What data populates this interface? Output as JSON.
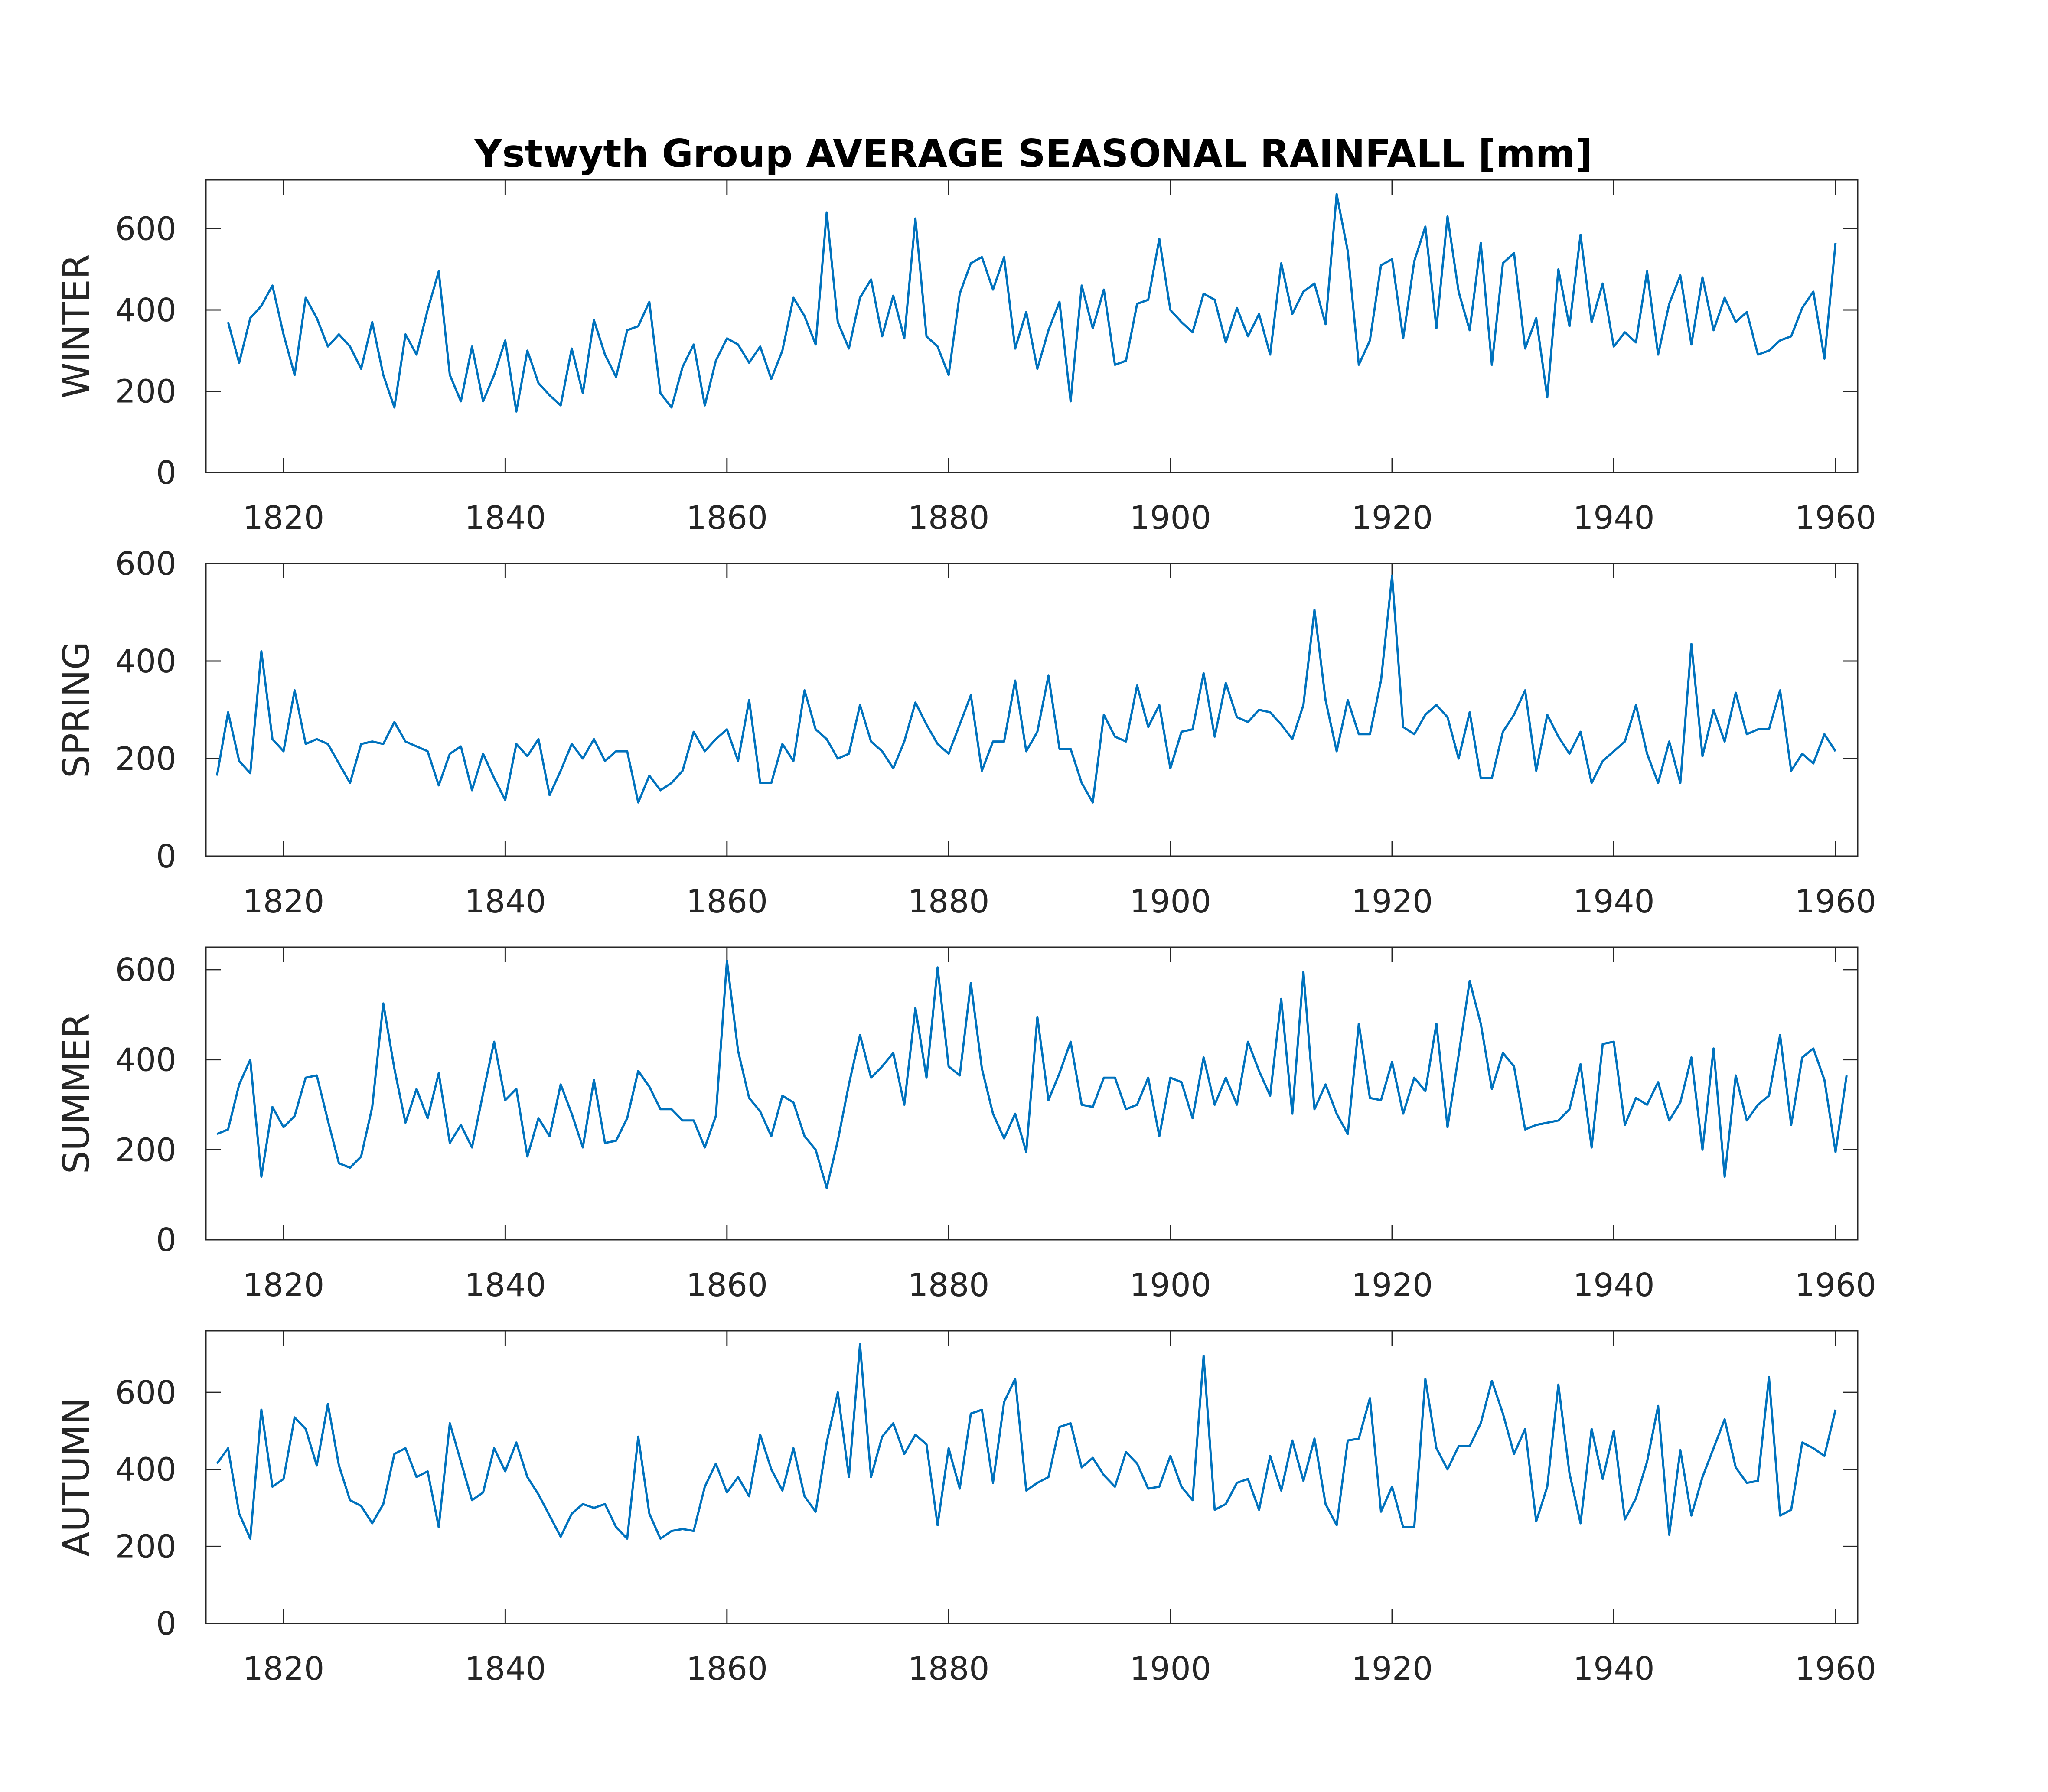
{
  "title": "Ystwyth Group AVERAGE SEASONAL RAINFALL [mm]",
  "colors": {
    "line": "#0072BD",
    "axis": "#262626",
    "background": "#ffffff"
  },
  "chart_data": [
    {
      "type": "line",
      "ylabel": "WINTER",
      "xlabel": "",
      "xlim": [
        1813,
        1962
      ],
      "ylim": [
        0,
        720
      ],
      "xticks": [
        1820,
        1840,
        1860,
        1880,
        1900,
        1920,
        1940,
        1960
      ],
      "yticks": [
        0,
        200,
        400,
        600
      ],
      "x_start": 1815,
      "values": [
        370,
        270,
        380,
        410,
        460,
        340,
        240,
        430,
        380,
        310,
        340,
        310,
        255,
        370,
        240,
        160,
        340,
        290,
        400,
        495,
        240,
        175,
        310,
        175,
        240,
        325,
        150,
        300,
        220,
        190,
        165,
        305,
        195,
        375,
        290,
        235,
        350,
        360,
        420,
        195,
        160,
        260,
        315,
        165,
        275,
        330,
        315,
        270,
        310,
        230,
        300,
        430,
        385,
        315,
        640,
        370,
        305,
        430,
        475,
        335,
        435,
        330,
        625,
        335,
        310,
        240,
        440,
        515,
        530,
        450,
        530,
        305,
        395,
        255,
        350,
        420,
        175,
        460,
        355,
        450,
        265,
        275,
        415,
        425,
        575,
        400,
        370,
        345,
        440,
        425,
        320,
        405,
        335,
        390,
        290,
        515,
        390,
        445,
        465,
        365,
        685,
        545,
        265,
        325,
        510,
        525,
        330,
        520,
        605,
        355,
        630,
        445,
        350,
        565,
        265,
        515,
        540,
        305,
        380,
        185,
        500,
        360,
        585,
        370,
        465,
        310,
        345,
        320,
        495,
        290,
        415,
        485,
        315,
        480,
        350,
        430,
        370,
        395,
        290,
        300,
        325,
        335,
        405,
        445,
        280,
        565
      ]
    },
    {
      "type": "line",
      "ylabel": "SPRING",
      "xlabel": "",
      "xlim": [
        1813,
        1962
      ],
      "ylim": [
        0,
        600
      ],
      "xticks": [
        1820,
        1840,
        1860,
        1880,
        1900,
        1920,
        1940,
        1960
      ],
      "yticks": [
        0,
        200,
        400,
        600
      ],
      "x_start": 1814,
      "values": [
        165,
        295,
        195,
        170,
        420,
        240,
        215,
        340,
        230,
        240,
        230,
        190,
        150,
        230,
        235,
        230,
        275,
        235,
        225,
        215,
        145,
        210,
        225,
        135,
        210,
        160,
        115,
        230,
        205,
        240,
        125,
        175,
        230,
        200,
        240,
        195,
        215,
        215,
        110,
        165,
        135,
        150,
        175,
        255,
        215,
        240,
        260,
        195,
        320,
        150,
        150,
        230,
        195,
        340,
        260,
        240,
        200,
        210,
        310,
        235,
        215,
        180,
        235,
        315,
        270,
        230,
        210,
        270,
        330,
        175,
        235,
        235,
        360,
        215,
        255,
        370,
        220,
        220,
        150,
        110,
        290,
        245,
        235,
        350,
        265,
        310,
        180,
        255,
        260,
        375,
        245,
        355,
        285,
        275,
        300,
        295,
        270,
        240,
        310,
        505,
        320,
        215,
        320,
        250,
        250,
        360,
        575,
        265,
        250,
        290,
        310,
        285,
        200,
        295,
        160,
        160,
        255,
        290,
        340,
        175,
        290,
        245,
        210,
        255,
        150,
        195,
        215,
        235,
        310,
        210,
        150,
        235,
        150,
        435,
        205,
        300,
        235,
        335,
        250,
        260,
        260,
        340,
        175,
        210,
        190,
        250,
        215
      ]
    },
    {
      "type": "line",
      "ylabel": "SUMMER",
      "xlabel": "",
      "xlim": [
        1813,
        1962
      ],
      "ylim": [
        0,
        650
      ],
      "xticks": [
        1820,
        1840,
        1860,
        1880,
        1900,
        1920,
        1940,
        1960
      ],
      "yticks": [
        0,
        200,
        400,
        600
      ],
      "x_start": 1814,
      "values": [
        235,
        245,
        345,
        400,
        140,
        295,
        250,
        275,
        360,
        365,
        265,
        170,
        160,
        185,
        295,
        525,
        380,
        260,
        335,
        270,
        370,
        215,
        255,
        205,
        325,
        440,
        310,
        335,
        185,
        270,
        230,
        345,
        280,
        205,
        355,
        215,
        220,
        270,
        375,
        340,
        290,
        290,
        265,
        265,
        205,
        275,
        620,
        420,
        315,
        285,
        230,
        320,
        305,
        230,
        200,
        115,
        220,
        345,
        455,
        360,
        385,
        415,
        300,
        515,
        360,
        605,
        385,
        365,
        570,
        380,
        280,
        225,
        280,
        195,
        495,
        310,
        370,
        440,
        300,
        295,
        360,
        360,
        290,
        300,
        360,
        230,
        360,
        350,
        270,
        405,
        300,
        360,
        300,
        440,
        375,
        320,
        535,
        280,
        595,
        290,
        345,
        280,
        235,
        480,
        315,
        310,
        395,
        280,
        360,
        330,
        480,
        250,
        410,
        575,
        480,
        335,
        415,
        385,
        245,
        255,
        260,
        265,
        290,
        390,
        205,
        435,
        440,
        255,
        315,
        300,
        350,
        265,
        305,
        405,
        200,
        425,
        140,
        365,
        265,
        300,
        320,
        455,
        255,
        405,
        425,
        355,
        195,
        365
      ]
    },
    {
      "type": "line",
      "ylabel": "AUTUMN",
      "xlabel": "",
      "xlim": [
        1813,
        1962
      ],
      "ylim": [
        0,
        760
      ],
      "xticks": [
        1820,
        1840,
        1860,
        1880,
        1900,
        1920,
        1940,
        1960
      ],
      "yticks": [
        0,
        200,
        400,
        600
      ],
      "x_start": 1814,
      "values": [
        415,
        455,
        285,
        220,
        555,
        355,
        375,
        535,
        505,
        410,
        570,
        410,
        320,
        305,
        260,
        310,
        440,
        455,
        380,
        395,
        250,
        520,
        420,
        320,
        340,
        455,
        395,
        470,
        380,
        335,
        280,
        225,
        285,
        310,
        300,
        310,
        250,
        220,
        485,
        285,
        220,
        240,
        245,
        240,
        355,
        415,
        340,
        380,
        330,
        490,
        400,
        345,
        455,
        330,
        290,
        470,
        600,
        380,
        725,
        380,
        485,
        520,
        440,
        490,
        465,
        255,
        455,
        350,
        545,
        555,
        365,
        575,
        635,
        345,
        365,
        380,
        510,
        520,
        405,
        430,
        385,
        355,
        445,
        415,
        350,
        355,
        435,
        355,
        320,
        695,
        295,
        310,
        365,
        375,
        295,
        435,
        345,
        475,
        370,
        480,
        310,
        255,
        475,
        480,
        585,
        290,
        355,
        250,
        250,
        635,
        455,
        400,
        460,
        460,
        520,
        630,
        545,
        440,
        505,
        265,
        355,
        620,
        390,
        260,
        505,
        375,
        500,
        270,
        325,
        420,
        565,
        230,
        450,
        280,
        380,
        455,
        530,
        405,
        365,
        370,
        640,
        280,
        295,
        470,
        455,
        435,
        555
      ]
    }
  ]
}
